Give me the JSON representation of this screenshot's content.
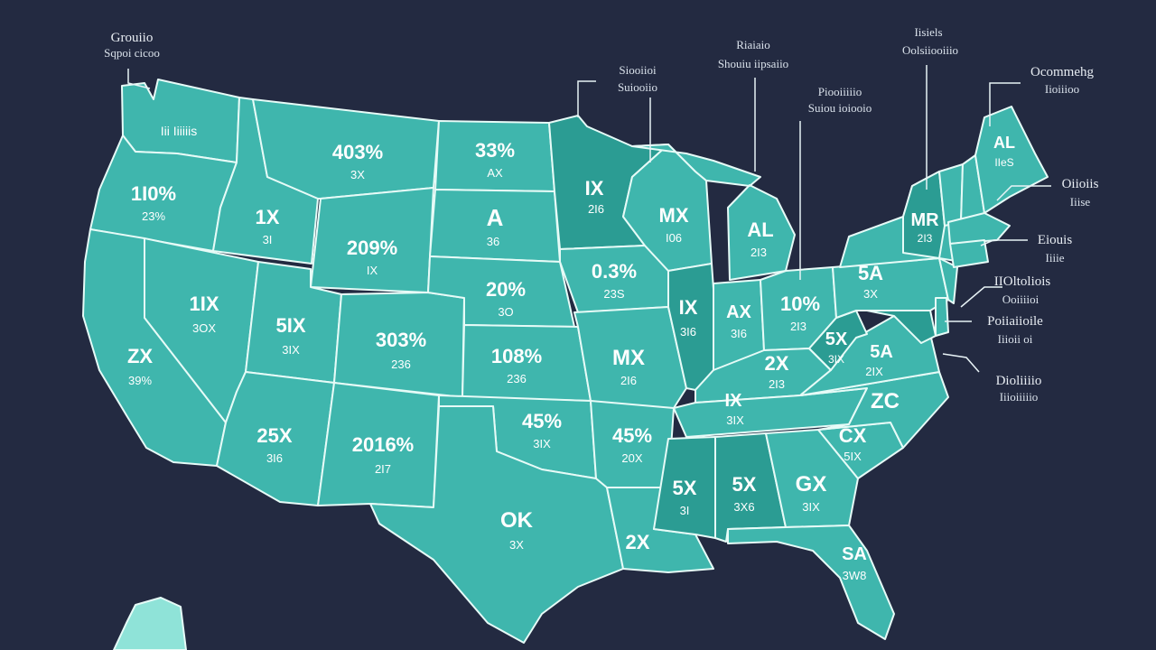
{
  "colors": {
    "background": "#232a41",
    "state_fill": "#3fb6ad",
    "state_fill_dark": "#2b9c93",
    "border": "#e6fbf7",
    "label": "#ffffff"
  },
  "regions": [
    {
      "id": "wa",
      "main": "",
      "sub": "Iii Iiiiiis"
    },
    {
      "id": "or",
      "main": "1I0%",
      "sub": "23%"
    },
    {
      "id": "ca",
      "main": "ZX",
      "sub": "39%"
    },
    {
      "id": "id",
      "main": "1X",
      "sub": "3I"
    },
    {
      "id": "nv",
      "main": "1IX",
      "sub": "3OX"
    },
    {
      "id": "mt",
      "main": "403%",
      "sub": "3X"
    },
    {
      "id": "wy",
      "main": "209%",
      "sub": "IX"
    },
    {
      "id": "ut",
      "main": "5IX",
      "sub": "3IX"
    },
    {
      "id": "co",
      "main": "303%",
      "sub": "236"
    },
    {
      "id": "az",
      "main": "25X",
      "sub": "3I6"
    },
    {
      "id": "nm",
      "main": "2016%",
      "sub": "2I7"
    },
    {
      "id": "nd",
      "main": "33%",
      "sub": "AX"
    },
    {
      "id": "sd",
      "main": "A",
      "sub": "36"
    },
    {
      "id": "ne",
      "main": "20%",
      "sub": "3O"
    },
    {
      "id": "ks",
      "main": "108%",
      "sub": "236"
    },
    {
      "id": "ok",
      "main": "45%",
      "sub": "3IX"
    },
    {
      "id": "tx",
      "main": "OK",
      "sub": "3X"
    },
    {
      "id": "mn",
      "main": "IX",
      "sub": "2I6"
    },
    {
      "id": "ia",
      "main": "0.3%",
      "sub": "23S"
    },
    {
      "id": "mo",
      "main": "MX",
      "sub": "2I6"
    },
    {
      "id": "ar",
      "main": "45%",
      "sub": "20X"
    },
    {
      "id": "la",
      "main": "2X",
      "sub": ""
    },
    {
      "id": "wi",
      "main": "MX",
      "sub": "I06"
    },
    {
      "id": "il",
      "main": "IX",
      "sub": "3I6"
    },
    {
      "id": "mi",
      "main": "AL",
      "sub": "2I3"
    },
    {
      "id": "in",
      "main": "AX",
      "sub": "3I6"
    },
    {
      "id": "oh",
      "main": "10%",
      "sub": "2I3"
    },
    {
      "id": "ky",
      "main": "2X",
      "sub": "2I3"
    },
    {
      "id": "tn",
      "main": "IX",
      "sub": "3IX"
    },
    {
      "id": "ms",
      "main": "5X",
      "sub": "3I"
    },
    {
      "id": "al",
      "main": "5X",
      "sub": "3X6"
    },
    {
      "id": "ga",
      "main": "GX",
      "sub": "3IX"
    },
    {
      "id": "fl",
      "main": "SA",
      "sub": "3W8"
    },
    {
      "id": "sc",
      "main": "CX",
      "sub": "5IX"
    },
    {
      "id": "nc",
      "main": "ZC",
      "sub": ""
    },
    {
      "id": "va",
      "main": "5A",
      "sub": "2IX"
    },
    {
      "id": "wv",
      "main": "5X",
      "sub": "3IX"
    },
    {
      "id": "pa",
      "main": "5A",
      "sub": "3X"
    },
    {
      "id": "ny",
      "main": "MR",
      "sub": "2I3"
    },
    {
      "id": "me",
      "main": "AL",
      "sub": "IIeS"
    }
  ],
  "callouts": [
    {
      "id": "co-wa",
      "line1": "Grouiio",
      "line2": "Sqpoi cicoo"
    },
    {
      "id": "co-mn",
      "line1": "Siooiioi",
      "line2": "Suiooiio"
    },
    {
      "id": "co-wi",
      "line1": "Riaiaio",
      "line2": "Shouiu iipsaiio"
    },
    {
      "id": "co-mi",
      "line1": "Piooiiiiio",
      "line2": "Suiou ioiooio"
    },
    {
      "id": "co-ny",
      "line1": "Iisiels",
      "line2": "Oolsiiooiiio"
    },
    {
      "id": "co-me",
      "line1": "Ocommehg",
      "line2": "Iioiiioo"
    },
    {
      "id": "co-vt",
      "line1": "Oiioiis",
      "line2": "Iiise"
    },
    {
      "id": "co-ma",
      "line1": "Eiouis",
      "line2": "Iiiie"
    },
    {
      "id": "co-nj",
      "line1": "IIOltoliois",
      "line2": "Ooiiiioi"
    },
    {
      "id": "co-de",
      "line1": "Poiiaiioile",
      "line2": "Iiioii oi"
    },
    {
      "id": "co-md",
      "line1": "Dioliiiio",
      "line2": "Iiioiiiiio"
    }
  ]
}
